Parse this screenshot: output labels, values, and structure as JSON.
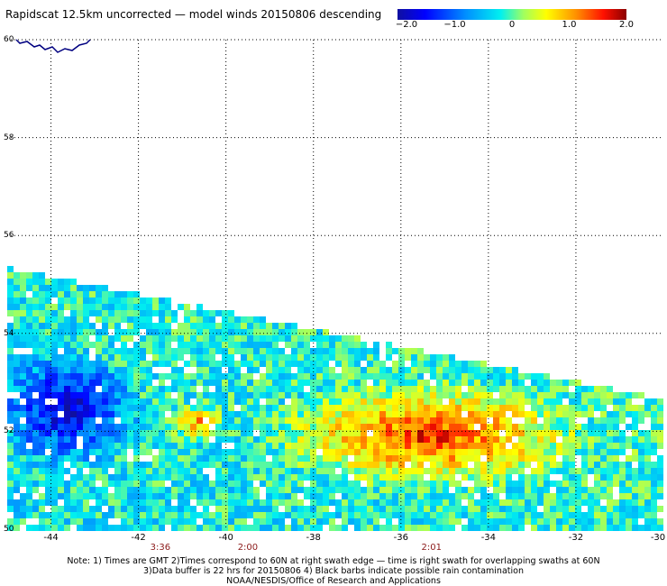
{
  "title": "Rapidscat 12.5km uncorrected — model winds 20150806 descending",
  "colorbar": {
    "ticks": [
      "−2.0",
      "−1.0",
      "0",
      "1.0",
      "2.0"
    ],
    "tick_values": [
      -2.0,
      -1.0,
      0,
      1.0,
      2.0
    ],
    "min": -2.0,
    "max": 2.0
  },
  "map": {
    "lon_range": [
      -45,
      -30
    ],
    "lat_range": [
      50,
      60
    ],
    "lat_labels": [
      "60",
      "58",
      "56",
      "54",
      "52",
      "50"
    ],
    "lon_labels": [
      "-44",
      "-42",
      "-40",
      "-38",
      "-36",
      "-34",
      "-32",
      "-30"
    ],
    "time_labels": [
      {
        "text": "3:36",
        "lon": -41.5
      },
      {
        "text": "2:00",
        "lon": -39.5
      },
      {
        "text": "2:01",
        "lon": -35.3
      }
    ],
    "grid": "dotted",
    "coastline_color": "#000080"
  },
  "notes": [
    "Note: 1) Times are GMT 2)Times correspond to 60N at right swath edge — time is right swath for overlapping swaths at 60N",
    "3)Data buffer is 22 hrs for 20150806 4) Black barbs indicate possible rain contamination",
    "NOAA/NESDIS/Office of Research and Applications"
  ]
}
